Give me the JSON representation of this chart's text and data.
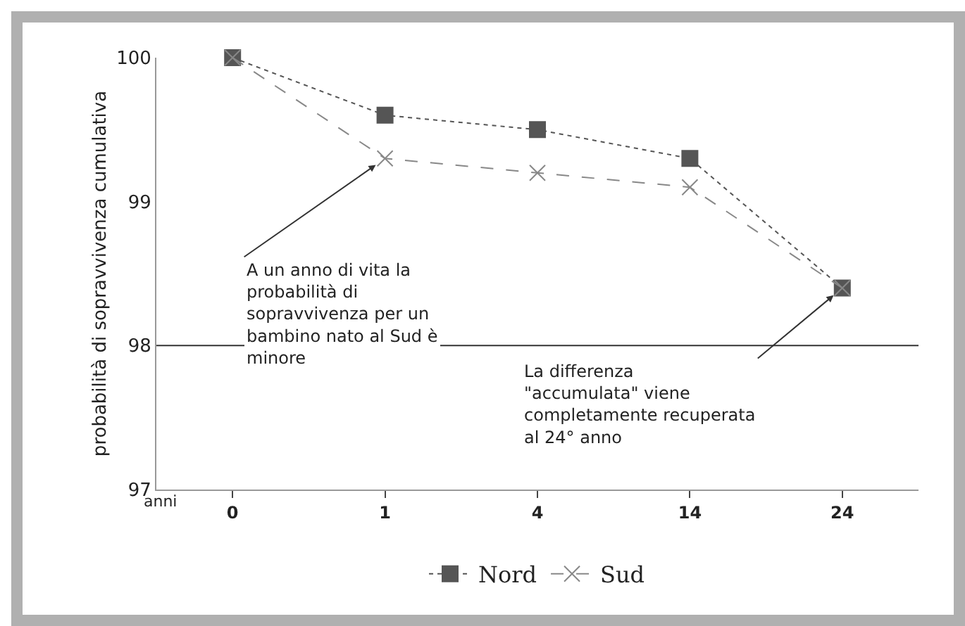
{
  "chart_data": {
    "type": "line",
    "xlabel": "anni",
    "ylabel": "probabilità di sopravvivenza cumulativa",
    "categories": [
      "0",
      "1",
      "4",
      "14",
      "24"
    ],
    "series": [
      {
        "name": "Nord",
        "color": "#555555",
        "marker": "square",
        "line_style": "dotted",
        "values": [
          100,
          99.6,
          99.5,
          99.3,
          98.4
        ]
      },
      {
        "name": "Sud",
        "color": "#888888",
        "marker": "cross",
        "line_style": "dashed",
        "values": [
          100,
          99.3,
          99.2,
          99.1,
          98.4
        ]
      }
    ],
    "ylim": [
      97,
      100
    ],
    "yticks": [
      97,
      98,
      99,
      100
    ],
    "grid": false,
    "legend": "bottom",
    "ref_lines": [
      {
        "axis": "y",
        "value": 98,
        "color": "#333333"
      }
    ],
    "annotations": [
      {
        "text": "A un anno di vita la probabilità di sopravvivenza per un bambino nato al Sud è minore",
        "x": "1",
        "y": 99.3
      },
      {
        "text": "La differenza \"accumulata\" viene completamente recuperata al 24° anno",
        "x": "24",
        "y": 98.4
      }
    ]
  }
}
